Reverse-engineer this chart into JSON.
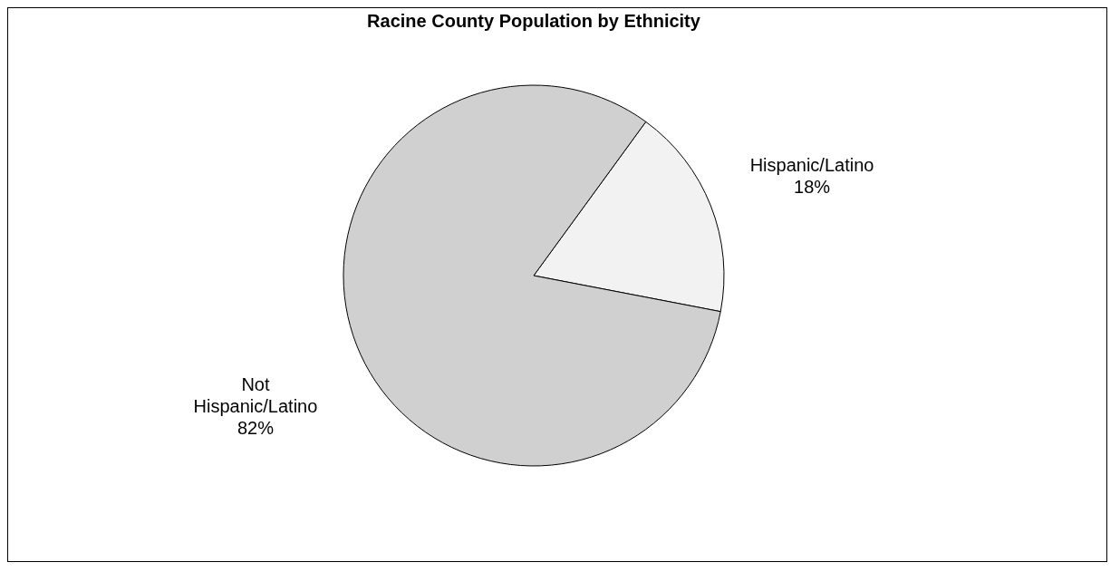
{
  "chart_data": {
    "type": "pie",
    "title": "Racine County Population by Ethnicity",
    "categories": [
      "Hispanic/Latino",
      "Not Hispanic/Latino"
    ],
    "values": [
      18,
      82
    ],
    "value_labels": [
      "18%",
      "82%"
    ],
    "colors": [
      "#f2f2f2",
      "#d0d0d0"
    ],
    "legend": false
  }
}
